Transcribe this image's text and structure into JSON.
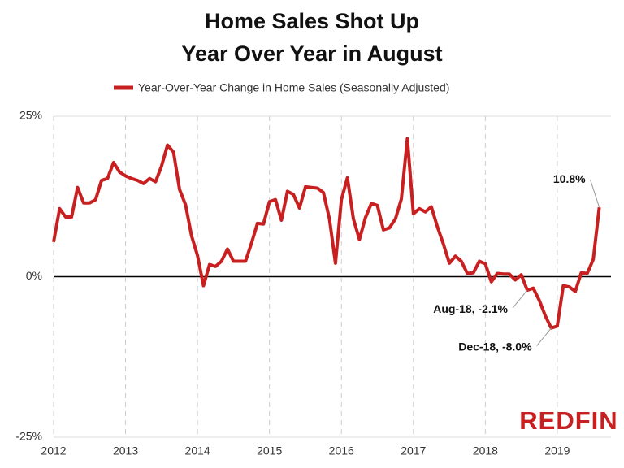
{
  "chart_data": {
    "type": "line",
    "title": [
      "Home Sales Shot Up",
      "Year Over Year in August"
    ],
    "logo": "REDFIN",
    "categories": [
      "2012",
      null,
      null,
      null,
      null,
      null,
      null,
      null,
      null,
      null,
      null,
      null,
      "2013",
      null,
      null,
      null,
      null,
      null,
      null,
      null,
      null,
      null,
      null,
      null,
      "2014",
      null,
      null,
      null,
      null,
      null,
      null,
      null,
      null,
      null,
      null,
      null,
      "2015",
      null,
      null,
      null,
      null,
      null,
      null,
      null,
      null,
      null,
      null,
      null,
      "2016",
      null,
      null,
      null,
      null,
      null,
      null,
      null,
      null,
      null,
      null,
      null,
      "2017",
      null,
      null,
      null,
      null,
      null,
      null,
      null,
      null,
      null,
      null,
      null,
      "2018",
      null,
      null,
      null,
      null,
      null,
      null,
      null,
      null,
      null,
      null,
      null,
      "2019",
      null,
      null,
      null,
      null,
      null,
      null,
      null
    ],
    "series": [
      {
        "name": "Year-Over-Year Change in Home Sales (Seasonally Adjusted)",
        "color": "#c82021",
        "values": [
          5.4,
          10.6,
          9.3,
          9.3,
          13.9,
          11.5,
          11.5,
          12,
          15,
          15.3,
          17.8,
          16.3,
          15.7,
          15.3,
          15,
          14.5,
          15.3,
          14.8,
          17.2,
          20.5,
          19.4,
          13.6,
          11.2,
          6.4,
          3.3,
          -1.4,
          1.9,
          1.6,
          2.4,
          4.3,
          2.4,
          2.4,
          2.4,
          5.2,
          8.3,
          8.2,
          11.7,
          12,
          8.8,
          13.3,
          12.8,
          10.7,
          14,
          13.9,
          13.8,
          13.1,
          9,
          2.1,
          12,
          15.4,
          9,
          5.8,
          9.2,
          11.4,
          11.1,
          7.3,
          7.6,
          9,
          12.1,
          21.5,
          9.8,
          10.6,
          10.1,
          10.9,
          7.8,
          5.1,
          2.1,
          3.2,
          2.4,
          0.5,
          0.6,
          2.4,
          2,
          -0.8,
          0.5,
          0.4,
          0.4,
          -0.5,
          0.3,
          -2.1,
          -1.8,
          -3.7,
          -6.1,
          -8.0,
          -7.7,
          -1.4,
          -1.6,
          -2.3,
          0.6,
          0.5,
          2.7,
          10.8
        ],
        "value_labels": [
          null,
          null,
          null,
          null,
          null,
          null,
          null,
          null,
          null,
          null,
          null,
          null,
          null,
          null,
          null,
          null,
          null,
          null,
          null,
          null,
          null,
          null,
          null,
          null,
          null,
          null,
          null,
          null,
          null,
          null,
          null,
          null,
          null,
          null,
          null,
          null,
          null,
          null,
          null,
          null,
          null,
          null,
          null,
          null,
          null,
          null,
          null,
          null,
          null,
          null,
          null,
          null,
          null,
          null,
          null,
          null,
          null,
          null,
          null,
          null,
          null,
          null,
          null,
          null,
          null,
          null,
          null,
          null,
          null,
          null,
          null,
          null,
          null,
          null,
          null,
          null,
          null,
          null,
          null,
          "Aug-18, -2.1%",
          null,
          null,
          null,
          "Dec-18, -8.0%",
          null,
          null,
          null,
          null,
          null,
          null,
          null,
          "10.8%"
        ]
      }
    ],
    "ylim": [
      -25,
      25
    ],
    "yticks": [
      {
        "value": 25,
        "label": "25%"
      },
      {
        "value": 0,
        "label": "0%"
      },
      {
        "value": -25,
        "label": "-25%"
      }
    ],
    "grid": true,
    "legend": "top"
  }
}
